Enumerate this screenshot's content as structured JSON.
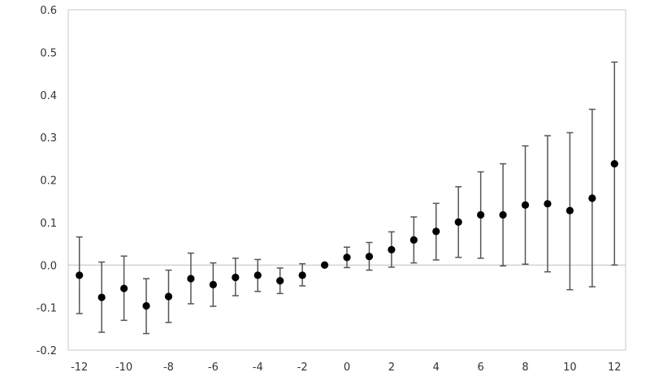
{
  "chart_data": {
    "type": "scatter",
    "title": "",
    "xlabel": "",
    "ylabel": "",
    "xlim": [
      -12.5,
      12.5
    ],
    "ylim": [
      -0.2,
      0.6
    ],
    "x_ticks": [
      -12,
      -10,
      -8,
      -6,
      -4,
      -2,
      0,
      2,
      4,
      6,
      8,
      10,
      12
    ],
    "x_tick_labels": [
      "-12",
      "-10",
      "-8",
      "-6",
      "-4",
      "-2",
      "0",
      "2",
      "4",
      "6",
      "8",
      "10",
      "12"
    ],
    "y_ticks": [
      -0.2,
      -0.1,
      0.0,
      0.1,
      0.2,
      0.3,
      0.4,
      0.5,
      0.6
    ],
    "y_tick_labels": [
      "-0.2",
      "-0.1",
      "0.0",
      "0.1",
      "0.2",
      "0.3",
      "0.4",
      "0.5",
      "0.6"
    ],
    "grid": false,
    "zero_line": true,
    "series": [
      {
        "marker": "filled-circle",
        "color": "#000000",
        "errorbar_color": "#555555",
        "points": [
          {
            "x": -12,
            "y": -0.024,
            "lo": -0.114,
            "hi": 0.066
          },
          {
            "x": -11,
            "y": -0.076,
            "lo": -0.158,
            "hi": 0.007
          },
          {
            "x": -10,
            "y": -0.055,
            "lo": -0.13,
            "hi": 0.021
          },
          {
            "x": -9,
            "y": -0.096,
            "lo": -0.161,
            "hi": -0.032
          },
          {
            "x": -8,
            "y": -0.074,
            "lo": -0.135,
            "hi": -0.012
          },
          {
            "x": -7,
            "y": -0.032,
            "lo": -0.091,
            "hi": 0.028
          },
          {
            "x": -6,
            "y": -0.046,
            "lo": -0.097,
            "hi": 0.005
          },
          {
            "x": -5,
            "y": -0.029,
            "lo": -0.072,
            "hi": 0.016
          },
          {
            "x": -4,
            "y": -0.024,
            "lo": -0.062,
            "hi": 0.013
          },
          {
            "x": -3,
            "y": -0.037,
            "lo": -0.067,
            "hi": -0.007
          },
          {
            "x": -2,
            "y": -0.024,
            "lo": -0.049,
            "hi": 0.003
          },
          {
            "x": -1,
            "y": 0.0,
            "lo": 0.0,
            "hi": 0.0
          },
          {
            "x": 0,
            "y": 0.018,
            "lo": -0.006,
            "hi": 0.042
          },
          {
            "x": 1,
            "y": 0.02,
            "lo": -0.012,
            "hi": 0.053
          },
          {
            "x": 2,
            "y": 0.036,
            "lo": -0.005,
            "hi": 0.078
          },
          {
            "x": 3,
            "y": 0.059,
            "lo": 0.005,
            "hi": 0.113
          },
          {
            "x": 4,
            "y": 0.079,
            "lo": 0.012,
            "hi": 0.145
          },
          {
            "x": 5,
            "y": 0.101,
            "lo": 0.018,
            "hi": 0.184
          },
          {
            "x": 6,
            "y": 0.118,
            "lo": 0.016,
            "hi": 0.219
          },
          {
            "x": 7,
            "y": 0.118,
            "lo": -0.002,
            "hi": 0.238
          },
          {
            "x": 8,
            "y": 0.141,
            "lo": 0.002,
            "hi": 0.28
          },
          {
            "x": 9,
            "y": 0.144,
            "lo": -0.016,
            "hi": 0.304
          },
          {
            "x": 10,
            "y": 0.128,
            "lo": -0.058,
            "hi": 0.311
          },
          {
            "x": 11,
            "y": 0.157,
            "lo": -0.051,
            "hi": 0.366
          },
          {
            "x": 12,
            "y": 0.238,
            "lo": 0.0,
            "hi": 0.477
          }
        ]
      }
    ]
  }
}
